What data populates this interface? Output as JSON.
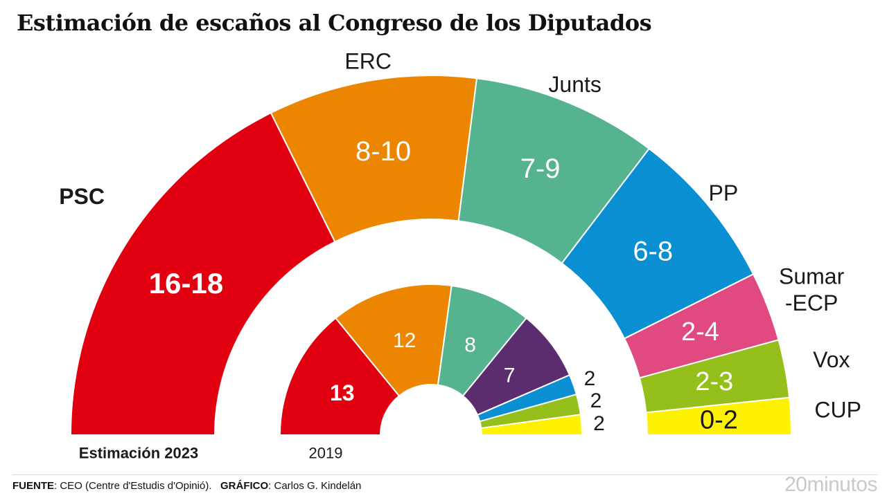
{
  "title": "Estimación de escaños al Congreso de los Diputados",
  "chart_data": [
    {
      "type": "pie",
      "subtype": "half-donut",
      "label": "Estimación 2023",
      "slices": [
        {
          "party": "PSC",
          "value": "16-18",
          "seats": 17,
          "color": "#e0000f"
        },
        {
          "party": "ERC",
          "value": "8-10",
          "seats": 9,
          "color": "#ec8600"
        },
        {
          "party": "Junts",
          "value": "7-9",
          "seats": 8,
          "color": "#55b390"
        },
        {
          "party": "PP",
          "value": "6-8",
          "seats": 7,
          "color": "#0a8fd2"
        },
        {
          "party": "Sumar\n-ECP",
          "value": "2-4",
          "seats": 3,
          "color": "#e04a80"
        },
        {
          "party": "Vox",
          "value": "2-3",
          "seats": 2.5,
          "color": "#95bf1a"
        },
        {
          "party": "CUP",
          "value": "0-2",
          "seats": 1.6,
          "color": "#fff200"
        }
      ]
    },
    {
      "type": "pie",
      "subtype": "half-donut",
      "label": "2019",
      "slices": [
        {
          "party": "PSC",
          "value": "13",
          "seats": 13,
          "color": "#e0000f"
        },
        {
          "party": "ERC",
          "value": "12",
          "seats": 12,
          "color": "#ec8600"
        },
        {
          "party": "Junts",
          "value": "8",
          "seats": 8,
          "color": "#55b390"
        },
        {
          "party": "",
          "value": "7",
          "seats": 7,
          "color": "#5b2d6e"
        },
        {
          "party": "",
          "value": "2",
          "seats": 2,
          "color": "#0a8fd2"
        },
        {
          "party": "",
          "value": "2",
          "seats": 2,
          "color": "#95bf1a"
        },
        {
          "party": "",
          "value": "2",
          "seats": 2,
          "color": "#fff200"
        }
      ]
    }
  ],
  "footer": {
    "source_label": "FUENTE",
    "source_text": ": CEO (Centre d'Estudis d'Opinió).",
    "credit_label": "GRÁFICO",
    "credit_text": ": Carlos G. Kindelán"
  },
  "brand": "20minutos"
}
